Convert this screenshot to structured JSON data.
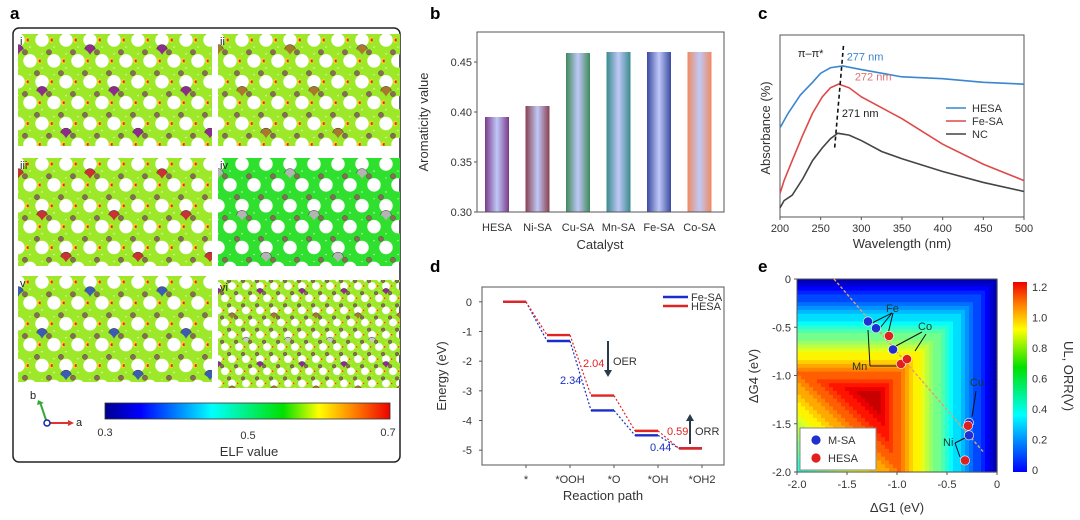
{
  "panel_labels": {
    "a": "a",
    "b": "b",
    "c": "c",
    "d": "d",
    "e": "e"
  },
  "panel_a": {
    "subpanels": [
      {
        "label": "i",
        "metal_color": "#8e2c8e"
      },
      {
        "label": "ii",
        "metal_color": "#a8782c"
      },
      {
        "label": "iii",
        "metal_color": "#c83232"
      },
      {
        "label": "iv",
        "metal_color": "#b4b4b4"
      },
      {
        "label": "v",
        "metal_color": "#3c5cb4"
      },
      {
        "label": "vi",
        "metal_color": "#8e2c8e"
      }
    ],
    "axis_labels": {
      "a": "a",
      "b": "b"
    },
    "colorbar": {
      "ticks": [
        "0.3",
        "0.5",
        "0.7"
      ],
      "label": "ELF value",
      "range": [
        0.3,
        0.7
      ],
      "colormap": "jet"
    }
  },
  "chart_data": [
    {
      "panel": "b",
      "type": "bar",
      "categories": [
        "HESA",
        "Ni-SA",
        "Cu-SA",
        "Mn-SA",
        "Fe-SA",
        "Co-SA"
      ],
      "values": [
        0.395,
        0.406,
        0.459,
        0.46,
        0.46,
        0.46
      ],
      "colors": [
        "#7a3a8a",
        "#8a4050",
        "#3f8a5a",
        "#3a8a8e",
        "#3a4aa0",
        "#f08a60"
      ],
      "xlabel": "Catalyst",
      "ylabel": "Aromaticity value",
      "yticks": [
        "0.30",
        "0.35",
        "0.40",
        "0.45"
      ],
      "ylim": [
        0.3,
        0.48
      ],
      "grid": false
    },
    {
      "panel": "c",
      "type": "line",
      "xlabel": "Wavelength (nm)",
      "ylabel": "Absorbance (%)",
      "xlim": [
        200,
        500
      ],
      "xticks": [
        "200",
        "250",
        "300",
        "350",
        "400",
        "450",
        "500"
      ],
      "ylim": [
        0,
        1
      ],
      "legend": "right",
      "series": [
        {
          "name": "HESA",
          "color": "#3a86d0",
          "x": [
            200,
            210,
            225,
            240,
            250,
            262,
            277,
            300,
            350,
            400,
            450,
            500
          ],
          "y": [
            0.49,
            0.57,
            0.67,
            0.74,
            0.79,
            0.82,
            0.83,
            0.81,
            0.77,
            0.76,
            0.74,
            0.73
          ]
        },
        {
          "name": "Fe-SA",
          "color": "#e04848",
          "x": [
            200,
            205,
            215,
            228,
            240,
            252,
            262,
            272,
            285,
            300,
            350,
            400,
            450,
            500
          ],
          "y": [
            0.13,
            0.2,
            0.31,
            0.45,
            0.57,
            0.66,
            0.71,
            0.73,
            0.71,
            0.66,
            0.54,
            0.4,
            0.29,
            0.2
          ]
        },
        {
          "name": "NC",
          "color": "#444444",
          "x": [
            200,
            205,
            215,
            228,
            240,
            252,
            262,
            271,
            285,
            300,
            325,
            350,
            400,
            450,
            500
          ],
          "y": [
            0.05,
            0.09,
            0.12,
            0.21,
            0.31,
            0.38,
            0.43,
            0.46,
            0.45,
            0.42,
            0.36,
            0.32,
            0.25,
            0.19,
            0.14
          ]
        }
      ],
      "annotations": [
        {
          "text": "π–π*",
          "x": 222,
          "y": 0.88,
          "color": "#222222"
        },
        {
          "text": "277 nm",
          "x": 282,
          "y": 0.86,
          "color": "#3a86d0"
        },
        {
          "text": "272 nm",
          "x": 292,
          "y": 0.75,
          "color": "#e07070"
        },
        {
          "text": "271 nm",
          "x": 276,
          "y": 0.55,
          "color": "#222222"
        }
      ],
      "peak_line": {
        "x": [
          278,
          267
        ],
        "y": [
          0.94,
          0.37
        ]
      }
    },
    {
      "panel": "d",
      "type": "line",
      "xlabel": "Reaction path",
      "ylabel": "Energy (eV)",
      "categories": [
        "*",
        "*OOH",
        "*O",
        "*OH",
        "*OH2"
      ],
      "ylim": [
        -5.5,
        0.5
      ],
      "yticks": [
        "0",
        "-1",
        "-2",
        "-3",
        "-4",
        "-5"
      ],
      "legend": "top-right",
      "series": [
        {
          "name": "Fe-SA",
          "color": "#1a2ec8",
          "values": [
            0,
            -1.32,
            -3.66,
            -4.5,
            -4.94
          ]
        },
        {
          "name": "HESA",
          "color": "#e02424",
          "values": [
            0,
            -1.12,
            -3.16,
            -4.35,
            -4.94
          ]
        }
      ],
      "annotations": [
        {
          "text": "2.04",
          "color": "#e02424"
        },
        {
          "text": "2.34",
          "color": "#1a2ec8"
        },
        {
          "text": "0.59",
          "color": "#e02424"
        },
        {
          "text": "0.44",
          "color": "#1a2ec8"
        },
        {
          "text": "OER",
          "direction": "down"
        },
        {
          "text": "ORR",
          "direction": "up"
        }
      ]
    },
    {
      "panel": "e",
      "type": "heatmap",
      "xlabel": "ΔG1 (eV)",
      "ylabel": "ΔG4 (eV)",
      "xlim": [
        -2.0,
        0
      ],
      "ylim": [
        -2.0,
        0
      ],
      "xticks": [
        "-2.0",
        "-1.5",
        "-1.0",
        "-0.5",
        "0"
      ],
      "yticks": [
        "0",
        "-0.5",
        "-1.0",
        "-1.5",
        "-2.0"
      ],
      "colorbar": {
        "label": "UL, ORR(V)",
        "ticks": [
          "0",
          "0.2",
          "0.4",
          "0.6",
          "0.8",
          "1.0",
          "1.2"
        ],
        "range": [
          0,
          1.23
        ],
        "colormap": "jet"
      },
      "legend": "bottom-left",
      "series": [
        {
          "name": "M-SA",
          "color": "#2030d0",
          "points": [
            {
              "label": "Fe",
              "x": -1.29,
              "y": -0.44
            },
            {
              "label": "Mn",
              "x": -1.21,
              "y": -0.51
            },
            {
              "label": "Co",
              "x": -1.04,
              "y": -0.73
            },
            {
              "label": "Cu",
              "x": -0.28,
              "y": -1.49
            },
            {
              "label": "Ni",
              "x": -0.28,
              "y": -1.62
            }
          ]
        },
        {
          "name": "HESA",
          "color": "#e02020",
          "points": [
            {
              "label": "Fe",
              "x": -1.08,
              "y": -0.59
            },
            {
              "label": "Mn",
              "x": -0.96,
              "y": -0.88
            },
            {
              "label": "Co",
              "x": -0.9,
              "y": -0.83
            },
            {
              "label": "Cu",
              "x": -0.29,
              "y": -1.52
            },
            {
              "label": "Ni",
              "x": -0.32,
              "y": -1.88
            }
          ]
        }
      ],
      "element_labels": [
        "Fe",
        "Co",
        "Mn",
        "Cu",
        "Ni"
      ],
      "trend_line": {
        "x": [
          -1.63,
          -0.13
        ],
        "y": [
          0,
          -1.8
        ]
      }
    }
  ]
}
